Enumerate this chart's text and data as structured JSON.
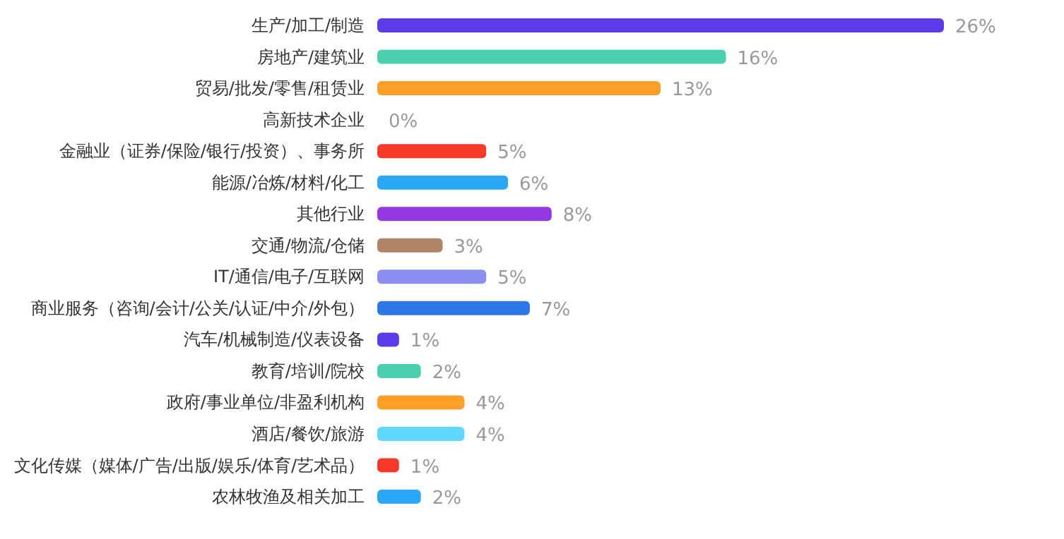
{
  "chart_data": {
    "type": "bar",
    "orientation": "horizontal",
    "categories": [
      "生产/加工/制造",
      "房地产/建筑业",
      "贸易/批发/零售/租赁业",
      "高新技术企业",
      "金融业（证券/保险/银行/投资）、事务所",
      "能源/冶炼/材料/化工",
      "其他行业",
      "交通/物流/仓储",
      "IT/通信/电子/互联网",
      "商业服务（咨询/会计/公关/认证/中介/外包）",
      "汽车/机械制造/仪表设备",
      "教育/培训/院校",
      "政府/事业单位/非盈利机构",
      "酒店/餐饮/旅游",
      "文化传媒（媒体/广告/出版/娱乐/体育/艺术品）",
      "农林牧渔及相关加工"
    ],
    "values": [
      26,
      16,
      13,
      0,
      5,
      6,
      8,
      3,
      5,
      7,
      1,
      2,
      4,
      4,
      1,
      2
    ],
    "value_labels": [
      "26%",
      "16%",
      "13%",
      "0%",
      "5%",
      "6%",
      "8%",
      "3%",
      "5%",
      "7%",
      "1%",
      "2%",
      "4%",
      "4%",
      "1%",
      "2%"
    ],
    "colors": [
      "#5b3be8",
      "#4ccfae",
      "#ff9f2a",
      "#2aa7f5",
      "#f5392b",
      "#2aa7f5",
      "#9238e0",
      "#b08466",
      "#8c8ef0",
      "#2d77e6",
      "#5b3be8",
      "#4ccfae",
      "#ff9f2a",
      "#5fd8ff",
      "#f5392b",
      "#2aa7f5"
    ]
  }
}
